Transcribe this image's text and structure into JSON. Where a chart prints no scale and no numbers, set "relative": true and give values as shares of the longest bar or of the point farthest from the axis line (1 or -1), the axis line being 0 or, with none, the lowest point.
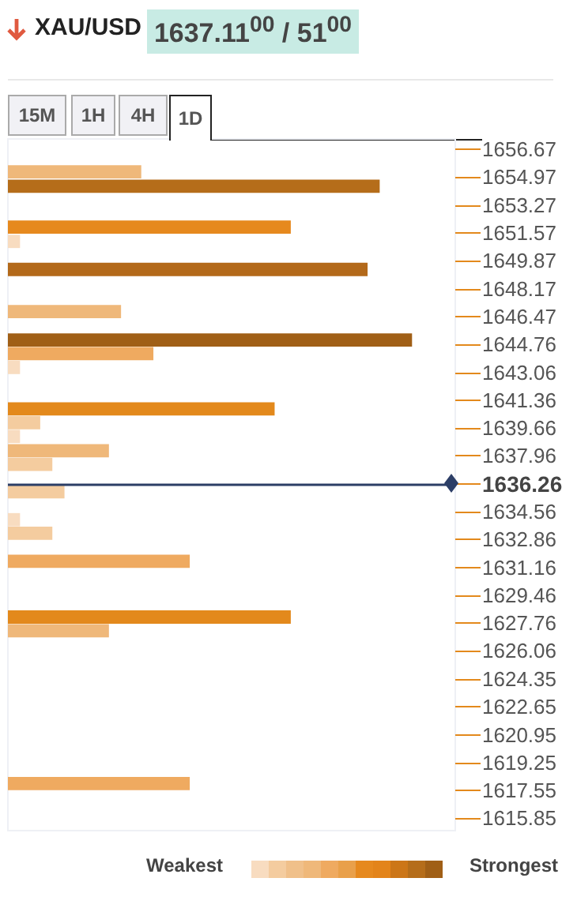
{
  "chart_data": {
    "type": "bar",
    "orientation": "horizontal",
    "relative": true,
    "title": "XAU/USD",
    "annotations": [
      "1637.11$^{00}$ / 51$^{00}$",
      "15M",
      "1H",
      "4H",
      "1D",
      "Weakest",
      "Strongest"
    ],
    "x": [
      1655.29,
      1654.42,
      1651.92,
      1651.05,
      1649.34,
      1646.77,
      1645.03,
      1644.2,
      1643.36,
      1640.83,
      1639.99,
      1639.15,
      1638.28,
      1637.45,
      1635.77,
      1634.07,
      1633.24,
      1631.53,
      1628.13,
      1627.29,
      1617.97
    ],
    "values": [
      0.33,
      0.92,
      0.7,
      0.03,
      0.89,
      0.28,
      1,
      0.36,
      0.03,
      0.66,
      0.08,
      0.03,
      0.25,
      0.11,
      0.14,
      0.03,
      0.11,
      0.45,
      0.7,
      0.25,
      0.45
    ],
    "colors": [
      "#efb87a",
      "#b56d1a",
      "#e6891e",
      "#f8dcc0",
      "#b3691a",
      "#efb87a",
      "#a05f16",
      "#efaa60",
      "#f8dcc0",
      "#e3891c",
      "#f4cc9f",
      "#f8dcc0",
      "#efb87a",
      "#f4cc9f",
      "#f4cc9f",
      "#f8dcc0",
      "#f4cc9f",
      "#efaa60",
      "#e3891c",
      "#efb87a",
      "#efaa60"
    ],
    "ylim": [
      1615.1,
      1657.3
    ],
    "yticks": [
      1656.67,
      1654.97,
      1653.27,
      1651.57,
      1649.87,
      1648.17,
      1646.47,
      1644.76,
      1643.06,
      1641.36,
      1639.66,
      1637.96,
      1636.26,
      1634.56,
      1632.86,
      1631.16,
      1629.46,
      1627.76,
      1626.06,
      1624.35,
      1622.65,
      1620.95,
      1619.25,
      1617.55,
      1615.85
    ],
    "ref_lines": [
      {
        "axis": "y",
        "value": 1636.26,
        "color": "#2c3e66"
      }
    ],
    "grid": false
  }
}
